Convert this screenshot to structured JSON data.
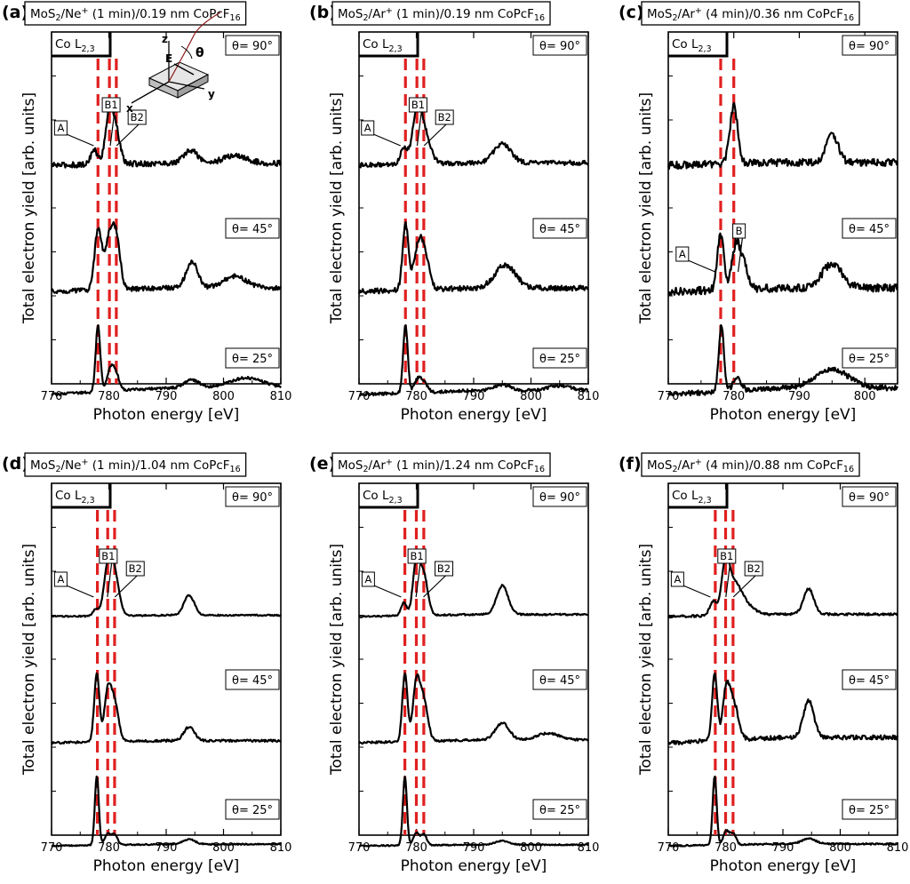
{
  "figure": {
    "colors": {
      "spectrum": "#000000",
      "marker_line": "#e02020",
      "frame": "#000000"
    },
    "panels": [
      {
        "letter": "(a)",
        "title": {
          "main": "MoS",
          "sub": "2",
          "rest": "/Ne",
          "sup": "+",
          "tail": " (1 min)/0.19 nm CoPcF",
          "sub2": "16"
        },
        "xlabel": "Photon energy [eV]",
        "ylabel": "Total electron yield [arb. units]",
        "edge": {
          "main": "Co L",
          "sub": "2,3"
        },
        "xlim": [
          770,
          810
        ],
        "xticks": [
          770,
          780,
          790,
          800,
          810
        ],
        "markers": [
          778.1,
          780.1,
          781.3
        ],
        "angles": [
          "θ= 90°",
          "θ= 45°",
          "θ= 25°"
        ],
        "peak_labels": [
          {
            "text": "A",
            "energy": 777.5,
            "angle_index": 0
          },
          {
            "text": "B1",
            "energy": 780.4,
            "angle_index": 0
          },
          {
            "text": "B2",
            "energy": 781.5,
            "angle_index": 0
          }
        ],
        "geometry_inset": {
          "labels": [
            "z",
            "E",
            "θ",
            "y",
            "x"
          ]
        },
        "chart_data": {
          "type": "line",
          "xlabel": "Photon energy [eV]",
          "ylabel": "Total electron yield [arb. units]",
          "series": [
            {
              "name": "θ= 90°",
              "peaks": [
                [
                  777.4,
                  0.28,
                  0.6
                ],
                [
                  780.1,
                  1.0,
                  0.7
                ],
                [
                  781.3,
                  0.55,
                  0.7
                ],
                [
                  794.3,
                  0.25,
                  1.2
                ],
                [
                  802.0,
                  0.15,
                  2.0
                ]
              ],
              "background": 0.04,
              "noise": 0.07
            },
            {
              "name": "θ= 45°",
              "peaks": [
                [
                  778.1,
                  1.0,
                  0.6
                ],
                [
                  780.3,
                  1.0,
                  0.9
                ],
                [
                  781.5,
                  0.5,
                  0.6
                ],
                [
                  794.5,
                  0.45,
                  1.0
                ],
                [
                  802.0,
                  0.2,
                  2.0
                ]
              ],
              "background": 0.06,
              "noise": 0.05
            },
            {
              "name": "θ= 25°",
              "peaks": [
                [
                  778.1,
                  1.2,
                  0.4
                ],
                [
                  780.2,
                  0.35,
                  0.6
                ],
                [
                  781.2,
                  0.3,
                  0.6
                ],
                [
                  794.5,
                  0.15,
                  1.2
                ],
                [
                  804.0,
                  0.18,
                  3.0
                ]
              ],
              "background": 0.12,
              "noise": 0.03
            }
          ]
        }
      },
      {
        "letter": "(b)",
        "title": {
          "main": "MoS",
          "sub": "2",
          "rest": "/Ar",
          "sup": "+",
          "tail": " (1 min)/0.19 nm CoPcF",
          "sub2": "16"
        },
        "xlabel": "Photon energy [eV]",
        "ylabel": "Total electron yield [arb. units]",
        "edge": {
          "main": "Co L",
          "sub": "2,3"
        },
        "xlim": [
          770,
          810
        ],
        "xticks": [
          770,
          780,
          790,
          800,
          810
        ],
        "markers": [
          778.1,
          780.1,
          781.3
        ],
        "angles": [
          "θ= 90°",
          "θ= 45°",
          "θ= 25°"
        ],
        "peak_labels": [
          {
            "text": "A",
            "energy": 777.4,
            "angle_index": 0
          },
          {
            "text": "B1",
            "energy": 780.3,
            "angle_index": 0
          },
          {
            "text": "B2",
            "energy": 781.5,
            "angle_index": 0
          }
        ],
        "chart_data": {
          "type": "line",
          "xlabel": "Photon energy [eV]",
          "ylabel": "Total electron yield [arb. units]",
          "series": [
            {
              "name": "θ= 90°",
              "peaks": [
                [
                  777.8,
                  0.35,
                  0.6
                ],
                [
                  780.1,
                  1.0,
                  0.8
                ],
                [
                  781.5,
                  0.6,
                  1.0
                ],
                [
                  795.0,
                  0.4,
                  1.5
                ]
              ],
              "background": 0.05,
              "noise": 0.06
            },
            {
              "name": "θ= 45°",
              "peaks": [
                [
                  778.1,
                  1.0,
                  0.5
                ],
                [
                  780.3,
                  0.6,
                  0.8
                ],
                [
                  781.5,
                  0.45,
                  0.8
                ],
                [
                  795.5,
                  0.35,
                  1.8
                ]
              ],
              "background": 0.05,
              "noise": 0.05
            },
            {
              "name": "θ= 25°",
              "peaks": [
                [
                  778.1,
                  1.4,
                  0.4
                ],
                [
                  780.2,
                  0.25,
                  0.6
                ],
                [
                  781.3,
                  0.2,
                  0.6
                ],
                [
                  795.0,
                  0.12,
                  1.5
                ],
                [
                  805.0,
                  0.1,
                  2.0
                ]
              ],
              "background": 0.08,
              "noise": 0.04
            }
          ]
        }
      },
      {
        "letter": "(c)",
        "title": {
          "main": "MoS",
          "sub": "2",
          "rest": "/Ar",
          "sup": "+",
          "tail": " (4 min)/0.36 nm CoPcF",
          "sub2": "16"
        },
        "xlabel": "Photon energy [eV]",
        "ylabel": "Total electron yield [arb. units]",
        "edge": {
          "main": "Co L",
          "sub": "2,3"
        },
        "xlim": [
          770,
          805
        ],
        "xticks": [
          770,
          780,
          790,
          800
        ],
        "markers": [
          778.0,
          780.0
        ],
        "angles": [
          "θ= 90°",
          "θ= 45°",
          "θ= 25°"
        ],
        "peak_labels": [
          {
            "text": "A",
            "energy": 777.3,
            "angle_index": 1
          },
          {
            "text": "B",
            "energy": 780.8,
            "angle_index": 1
          }
        ],
        "chart_data": {
          "type": "line",
          "xlabel": "Photon energy [eV]",
          "ylabel": "Total electron yield [arb. units]",
          "series": [
            {
              "name": "θ= 90°",
              "peaks": [
                [
                  780.0,
                  1.0,
                  0.6
                ],
                [
                  795.0,
                  0.5,
                  0.9
                ]
              ],
              "background": 0.05,
              "noise": 0.08
            },
            {
              "name": "θ= 45°",
              "peaks": [
                [
                  778.0,
                  0.8,
                  0.5
                ],
                [
                  780.3,
                  0.6,
                  0.6
                ],
                [
                  781.5,
                  0.35,
                  0.7
                ],
                [
                  795.0,
                  0.35,
                  1.5
                ]
              ],
              "background": 0.05,
              "noise": 0.07
            },
            {
              "name": "θ= 25°",
              "peaks": [
                [
                  778.1,
                  1.2,
                  0.4
                ],
                [
                  780.5,
                  0.25,
                  0.6
                ],
                [
                  795.0,
                  0.35,
                  2.5
                ]
              ],
              "background": 0.12,
              "noise": 0.06
            }
          ]
        }
      },
      {
        "letter": "(d)",
        "title": {
          "main": "MoS",
          "sub": "2",
          "rest": "/Ne",
          "sup": "+",
          "tail": " (1 min)/1.04 nm CoPcF",
          "sub2": "16"
        },
        "xlabel": "Photon energy [eV]",
        "ylabel": "Total electron yield [arb. units]",
        "edge": {
          "main": "Co L",
          "sub": "2,3"
        },
        "xlim": [
          770,
          810
        ],
        "xticks": [
          770,
          780,
          790,
          800,
          810
        ],
        "markers": [
          778.0,
          779.8,
          781.0
        ],
        "angles": [
          "θ= 90°",
          "θ= 45°",
          "θ= 25°"
        ],
        "peak_labels": [
          {
            "text": "A",
            "energy": 777.5,
            "angle_index": 0
          },
          {
            "text": "B1",
            "energy": 779.9,
            "angle_index": 0
          },
          {
            "text": "B2",
            "energy": 781.2,
            "angle_index": 0
          }
        ],
        "chart_data": {
          "type": "line",
          "xlabel": "Photon energy [eV]",
          "ylabel": "Total electron yield [arb. units]",
          "series": [
            {
              "name": "θ= 90°",
              "peaks": [
                [
                  777.7,
                  0.15,
                  0.5
                ],
                [
                  779.8,
                  1.0,
                  0.7
                ],
                [
                  781.0,
                  0.9,
                  0.8
                ],
                [
                  794.0,
                  0.45,
                  0.9
                ]
              ],
              "background": 0.03,
              "noise": 0.02
            },
            {
              "name": "θ= 45°",
              "peaks": [
                [
                  777.9,
                  1.0,
                  0.45
                ],
                [
                  779.8,
                  0.7,
                  0.6
                ],
                [
                  781.0,
                  0.55,
                  0.7
                ],
                [
                  794.0,
                  0.2,
                  0.9
                ]
              ],
              "background": 0.03,
              "noise": 0.02
            },
            {
              "name": "θ= 25°",
              "peaks": [
                [
                  777.9,
                  1.35,
                  0.35
                ],
                [
                  779.8,
                  0.22,
                  0.5
                ],
                [
                  781.0,
                  0.2,
                  0.5
                ],
                [
                  794.0,
                  0.1,
                  1.0
                ]
              ],
              "background": 0.03,
              "noise": 0.015
            }
          ]
        }
      },
      {
        "letter": "(e)",
        "title": {
          "main": "MoS",
          "sub": "2",
          "rest": "/Ar",
          "sup": "+",
          "tail": " (1 min)/1.24 nm CoPcF",
          "sub2": "16"
        },
        "xlabel": "Photon energy [eV]",
        "ylabel": "Total electron yield [arb. units]",
        "edge": {
          "main": "Co L",
          "sub": "2,3"
        },
        "xlim": [
          770,
          810
        ],
        "xticks": [
          770,
          780,
          790,
          800,
          810
        ],
        "markers": [
          778.0,
          780.0,
          781.3
        ],
        "angles": [
          "θ= 90°",
          "θ= 45°",
          "θ= 25°"
        ],
        "peak_labels": [
          {
            "text": "A",
            "energy": 777.5,
            "angle_index": 0
          },
          {
            "text": "B1",
            "energy": 780.1,
            "angle_index": 0
          },
          {
            "text": "B2",
            "energy": 781.4,
            "angle_index": 0
          }
        ],
        "chart_data": {
          "type": "line",
          "xlabel": "Photon energy [eV]",
          "ylabel": "Total electron yield [arb. units]",
          "series": [
            {
              "name": "θ= 90°",
              "peaks": [
                [
                  777.8,
                  0.25,
                  0.5
                ],
                [
                  780.0,
                  1.0,
                  0.6
                ],
                [
                  781.3,
                  0.75,
                  0.7
                ],
                [
                  795.0,
                  0.55,
                  1.0
                ]
              ],
              "background": 0.04,
              "noise": 0.02
            },
            {
              "name": "θ= 45°",
              "peaks": [
                [
                  778.0,
                  1.0,
                  0.45
                ],
                [
                  780.0,
                  0.85,
                  0.6
                ],
                [
                  781.3,
                  0.6,
                  0.7
                ],
                [
                  795.0,
                  0.25,
                  1.2
                ],
                [
                  803.0,
                  0.1,
                  2.0
                ]
              ],
              "background": 0.04,
              "noise": 0.02
            },
            {
              "name": "θ= 25°",
              "peaks": [
                [
                  778.0,
                  1.4,
                  0.35
                ],
                [
                  780.0,
                  0.25,
                  0.5
                ],
                [
                  781.3,
                  0.22,
                  0.5
                ],
                [
                  795.0,
                  0.08,
                  1.2
                ]
              ],
              "background": 0.02,
              "noise": 0.015
            }
          ]
        }
      },
      {
        "letter": "(f)",
        "title": {
          "main": "MoS",
          "sub": "2",
          "rest": "/Ar",
          "sup": "+",
          "tail": " (4 min)/0.88 nm CoPcF",
          "sub2": "16"
        },
        "xlabel": "Photon energy [eV]",
        "ylabel": "Total electron yield [arb. units]",
        "edge": {
          "main": "Co L",
          "sub": "2,3"
        },
        "xlim": [
          770,
          810
        ],
        "xticks": [
          770,
          780,
          790,
          800,
          810
        ],
        "markers": [
          778.2,
          780.0,
          781.3
        ],
        "angles": [
          "θ= 90°",
          "θ= 45°",
          "θ= 25°"
        ],
        "peak_labels": [
          {
            "text": "A",
            "energy": 777.5,
            "angle_index": 0
          },
          {
            "text": "B1",
            "energy": 780.2,
            "angle_index": 0
          },
          {
            "text": "B2",
            "energy": 781.5,
            "angle_index": 0
          }
        ],
        "chart_data": {
          "type": "line",
          "xlabel": "Photon energy [eV]",
          "ylabel": "Total electron yield [arb. units]",
          "series": [
            {
              "name": "θ= 90°",
              "peaks": [
                [
                  777.8,
                  0.3,
                  0.6
                ],
                [
                  780.0,
                  1.0,
                  0.7
                ],
                [
                  781.5,
                  0.6,
                  1.2
                ],
                [
                  783.5,
                  0.2,
                  1.5
                ],
                [
                  794.5,
                  0.55,
                  0.9
                ]
              ],
              "background": 0.05,
              "noise": 0.03
            },
            {
              "name": "θ= 45°",
              "peaks": [
                [
                  778.1,
                  1.0,
                  0.45
                ],
                [
                  780.1,
                  0.7,
                  0.6
                ],
                [
                  781.4,
                  0.55,
                  0.8
                ],
                [
                  794.5,
                  0.55,
                  0.9
                ]
              ],
              "background": 0.08,
              "noise": 0.04
            },
            {
              "name": "θ= 25°",
              "peaks": [
                [
                  778.1,
                  1.5,
                  0.35
                ],
                [
                  780.1,
                  0.3,
                  0.5
                ],
                [
                  781.3,
                  0.25,
                  0.5
                ],
                [
                  794.5,
                  0.12,
                  1.2
                ]
              ],
              "background": 0.04,
              "noise": 0.02
            }
          ]
        }
      }
    ]
  }
}
